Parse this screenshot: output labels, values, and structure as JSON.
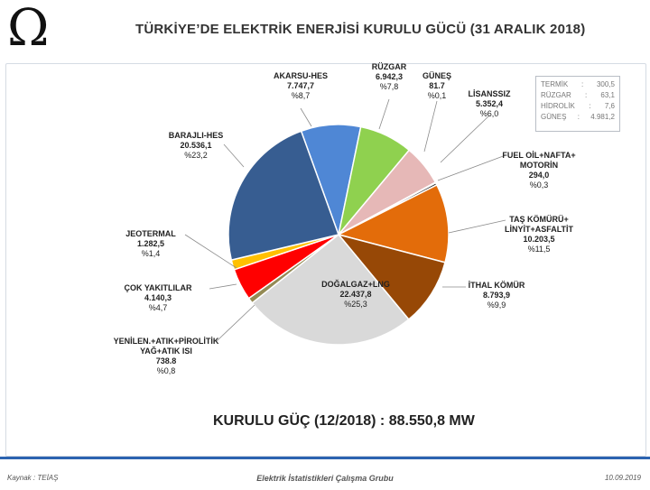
{
  "header": {
    "logo": "Ω",
    "title": "TÜRKİYE’DE ELEKTRİK ENERJİSİ KURULU GÜCÜ  (31 ARALIK 2018)"
  },
  "chart_data": {
    "type": "pie",
    "title": "TÜRKİYE’DE ELEKTRİK ENERJİSİ KURULU GÜCÜ  (31 ARALIK 2018)",
    "series": [
      {
        "name": "AKARSU-HES",
        "value": 7747.7,
        "percent": 8.7,
        "label_lines": [
          "AKARSU-HES",
          "7.747,7",
          "%8,7"
        ],
        "color": "#4f87d5"
      },
      {
        "name": "RÜZGAR",
        "value": 6942.3,
        "percent": 7.8,
        "label_lines": [
          "RÜZGAR",
          "6.942,3",
          "%7,8"
        ],
        "color": "#8fd14f"
      },
      {
        "name": "LİSANSSIZ",
        "value": 5352.4,
        "percent": 6.0,
        "label_lines": [
          "LİSANSSIZ",
          "5.352,4",
          "%6,0"
        ],
        "color": "#e6b8b7"
      },
      {
        "name": "GÜNEŞ",
        "value": 81.7,
        "percent": 0.1,
        "label_lines": [
          "GÜNEŞ",
          "81.7",
          "%0,1"
        ],
        "color": "#cdd6e6"
      },
      {
        "name": "FUEL OİL+NAFTA+MOTORİN",
        "value": 294.0,
        "percent": 0.3,
        "label_lines": [
          "FUEL OİL+NAFTA+",
          "MOTORİN",
          "294,0",
          "%0,3"
        ],
        "color": "#1f1f1f"
      },
      {
        "name": "TAŞ KÖMÜRÜ+LİNYİT+ASFALTİT",
        "value": 10203.5,
        "percent": 11.5,
        "label_lines": [
          "TAŞ KÖMÜRÜ+",
          "LİNYİT+ASFALTİT",
          "10.203,5",
          "%11,5"
        ],
        "color": "#e36c0a"
      },
      {
        "name": "İTHAL KÖMÜR",
        "value": 8793.9,
        "percent": 9.9,
        "label_lines": [
          "İTHAL KÖMÜR",
          "8.793,9",
          "%9,9"
        ],
        "color": "#974806"
      },
      {
        "name": "DOĞALGAZ+LNG",
        "value": 22437.8,
        "percent": 25.3,
        "label_lines": [
          "DOĞALGAZ+LNG",
          "22.437,8",
          "%25,3"
        ],
        "color": "#d9d9d9"
      },
      {
        "name": "YENİLEN.+ATIK+PİROLİTİK YAĞ+ATIK ISI",
        "value": 738.8,
        "percent": 0.8,
        "label_lines": [
          "YENİLEN.+ATIK+PİROLİTİK",
          "YAĞ+ATIK ISI",
          "738.8",
          "%0,8"
        ],
        "color": "#948a54"
      },
      {
        "name": "ÇOK YAKITLILAR",
        "value": 4140.3,
        "percent": 4.7,
        "label_lines": [
          "ÇOK YAKITLILAR",
          "4.140,3",
          "%4,7"
        ],
        "color": "#ff0000"
      },
      {
        "name": "JEOTERMAL",
        "value": 1282.5,
        "percent": 1.4,
        "label_lines": [
          "JEOTERMAL",
          "1.282,5",
          "%1,4"
        ],
        "color": "#ffc000"
      },
      {
        "name": "BARAJLI-HES",
        "value": 20536.1,
        "percent": 23.2,
        "label_lines": [
          "BARAJLI-HES",
          "20.536,1",
          "%23,2"
        ],
        "color": "#375d91"
      }
    ],
    "inset": {
      "rows": [
        {
          "name": "TERMİK",
          "sep": ":",
          "value": "300,5"
        },
        {
          "name": "RÜZGAR",
          "sep": ":",
          "value": "63,1"
        },
        {
          "name": "HİDROLİK",
          "sep": ":",
          "value": "7,6"
        },
        {
          "name": "GÜNEŞ",
          "sep": ":",
          "value": "4.981,2"
        }
      ]
    },
    "total_text": "KURULU GÜÇ (12/2018) : 88.550,8 MW"
  },
  "footer": {
    "source": "Kaynak : TEİAŞ",
    "group": "Elektrik İstatistikleri Çalışma Grubu",
    "date": "10.09.2019"
  }
}
